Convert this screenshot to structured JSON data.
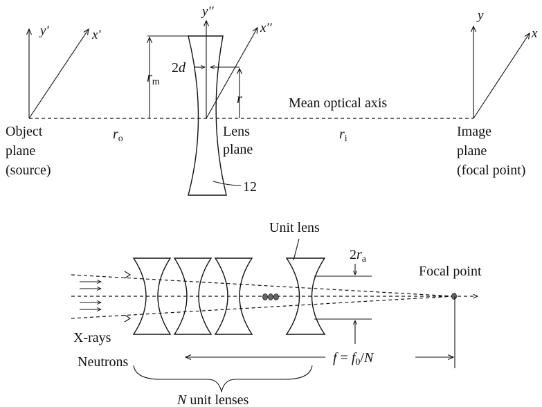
{
  "top": {
    "object_axes": {
      "y": "y'",
      "x": "x'"
    },
    "lens_axes": {
      "y": "y''",
      "x": "x''"
    },
    "image_axes": {
      "y": "y",
      "x": "x"
    },
    "r_m": {
      "base": "r",
      "sub": "m"
    },
    "two_d": {
      "coef": "2",
      "var": "d"
    },
    "r": "r",
    "mean_axis": "Mean optical axis",
    "r_o": {
      "base": "r",
      "sub": "o"
    },
    "r_i": {
      "base": "r",
      "sub": "i"
    },
    "object_plane": [
      "Object",
      "plane",
      "(source)"
    ],
    "lens_plane": [
      "Lens",
      "plane"
    ],
    "image_plane": [
      "Image",
      "plane",
      "(focal point)"
    ],
    "ref_12": "12"
  },
  "bottom": {
    "unit_lens": "Unit lens",
    "two_ra": {
      "coef": "2",
      "base": "r",
      "sub": "a"
    },
    "focal_point": "Focal point",
    "xrays": "X-rays",
    "neutrons": "Neutrons",
    "focal_eq": {
      "f": "f",
      "eq": " = ",
      "f0": "f",
      "f0_sub": "0",
      "slash": "/",
      "n": "N"
    },
    "n_unit": {
      "n": "N",
      "rest": " unit lenses"
    }
  }
}
